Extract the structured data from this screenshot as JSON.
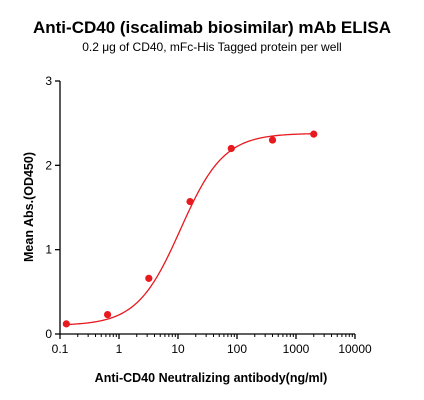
{
  "chart_data": {
    "type": "scatter",
    "title": "Anti-CD40 (iscalimab biosimilar) mAb ELISA",
    "subtitle": "0.2 μg of CD40, mFc-His Tagged protein per well",
    "xlabel": "Anti-CD40 Neutralizing antibody(ng/ml)",
    "ylabel": "Mean Abs.(OD450)",
    "x_scale": "log",
    "xlim": [
      0.1,
      10000
    ],
    "ylim": [
      0,
      3
    ],
    "x_ticks": [
      0.1,
      1,
      10,
      100,
      1000,
      10000
    ],
    "x_tick_labels": [
      "0.1",
      "1",
      "10",
      "100",
      "1000",
      "10000"
    ],
    "y_ticks": [
      0,
      1,
      2,
      3
    ],
    "y_tick_labels": [
      "0",
      "1",
      "2",
      "3"
    ],
    "grid": false,
    "series": [
      {
        "x": [
          0.128,
          0.64,
          3.2,
          16,
          80,
          400,
          2000
        ],
        "y": [
          0.12,
          0.23,
          0.66,
          1.57,
          2.2,
          2.3,
          2.37
        ],
        "color": "#e8191f",
        "fit": "4PL sigmoid curve"
      }
    ]
  }
}
